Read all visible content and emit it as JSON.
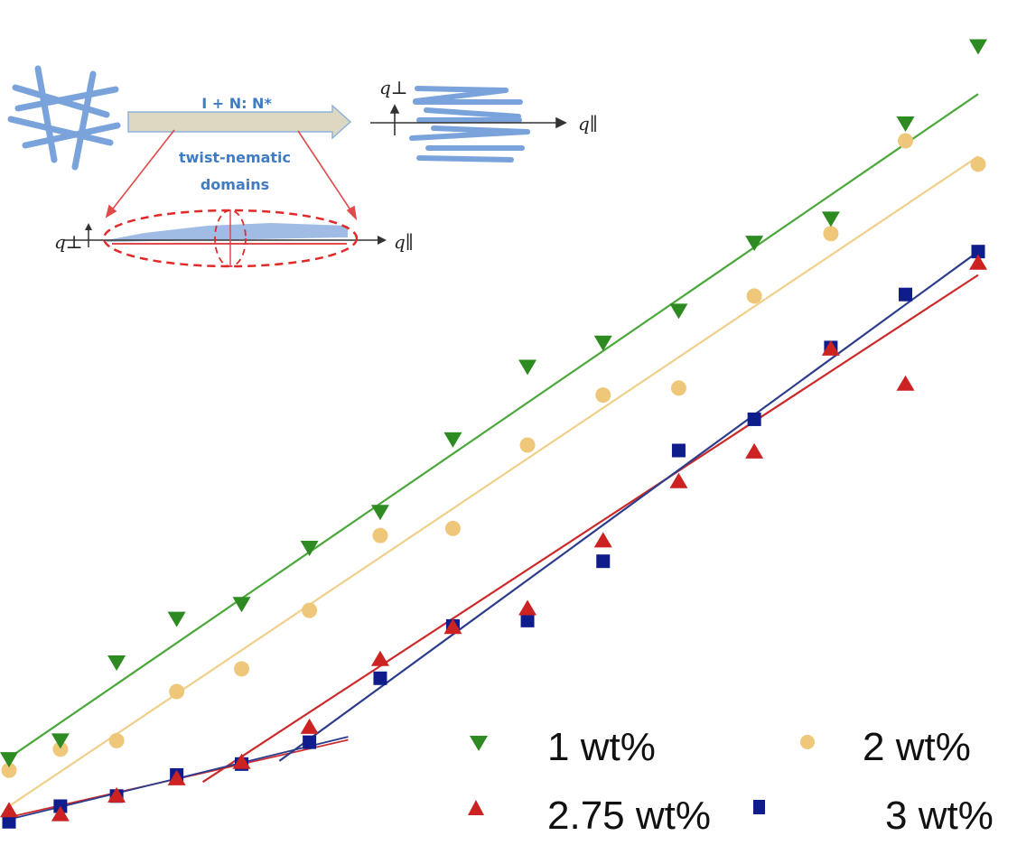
{
  "chart_data": {
    "type": "scatter",
    "title": "",
    "xlabel": "",
    "ylabel": "",
    "xlim": [
      0,
      100
    ],
    "ylim": [
      0,
      100
    ],
    "grid": false,
    "legend_position": "bottom-right",
    "series": [
      {
        "name": "1 wt%",
        "marker": "triangle-down",
        "color": "#2e8b22",
        "line_color": "#4aa83a",
        "x": [
          0,
          5.3,
          11.1,
          17.3,
          24.0,
          31.0,
          38.3,
          45.8,
          53.5,
          61.3,
          69.1,
          76.9,
          84.8,
          92.5,
          100
        ],
        "y": [
          8.2,
          10.6,
          20.6,
          26.2,
          28.1,
          35.3,
          39.9,
          49.2,
          58.5,
          61.6,
          65.7,
          74.4,
          77.5,
          89.7,
          99.6
        ],
        "fit": [
          [
            0,
            8.4
          ],
          [
            100,
            93.5
          ]
        ]
      },
      {
        "name": "2 wt%",
        "marker": "circle",
        "color": "#efc77a",
        "line_color": "#f0cf8a",
        "x": [
          0,
          5.3,
          11.1,
          17.3,
          24.0,
          31.0,
          38.3,
          45.8,
          53.5,
          61.3,
          69.1,
          76.9,
          84.8,
          92.5,
          100
        ],
        "y": [
          6.8,
          9.5,
          10.6,
          16.9,
          19.8,
          27.3,
          36.9,
          37.8,
          48.5,
          54.9,
          55.8,
          67.6,
          75.6,
          87.5,
          84.5
        ],
        "fit": [
          [
            0,
            2.2
          ],
          [
            100,
            85.5
          ]
        ]
      },
      {
        "name": "2.75 wt%",
        "marker": "triangle-up",
        "color": "#cc2222",
        "line_color": "#cc2a2a",
        "x": [
          0,
          5.3,
          11.1,
          17.3,
          24.0,
          31.0,
          38.3,
          45.8,
          53.5,
          61.3,
          69.1,
          76.9,
          84.8,
          92.5,
          100
        ],
        "y": [
          1.7,
          1.2,
          3.6,
          5.8,
          7.9,
          12.4,
          21.1,
          25.2,
          27.6,
          36.3,
          43.9,
          47.7,
          60.9,
          56.4,
          71.9
        ],
        "fit_low": [
          [
            0,
            0.8
          ],
          [
            35,
            10.7
          ]
        ],
        "fit_high": [
          [
            20,
            5.3
          ],
          [
            100,
            70.3
          ]
        ]
      },
      {
        "name": "3 wt%",
        "marker": "square",
        "color": "#0e1c8c",
        "line_color": "#2c3c8c",
        "x": [
          0,
          5.3,
          11.1,
          17.3,
          24.0,
          31.0,
          38.3,
          45.8,
          53.5,
          61.3,
          69.1,
          76.9,
          84.8,
          92.5,
          100
        ],
        "y": [
          0.2,
          2.2,
          3.5,
          6.2,
          7.6,
          10.4,
          18.6,
          25.3,
          26.0,
          33.6,
          47.8,
          51.8,
          61.0,
          67.8,
          73.3
        ],
        "fit_low": [
          [
            0,
            0.5
          ],
          [
            35,
            11.1
          ]
        ],
        "fit_high": [
          [
            27.9,
            8.0
          ],
          [
            100,
            73.3
          ]
        ]
      }
    ]
  },
  "inset": {
    "arrow_label": "I + N: N*",
    "domain_label_line1": "twist-nematic",
    "domain_label_line2": "domains",
    "q_perp": "q⊥",
    "q_par": "q∥"
  },
  "legend": {
    "items": [
      {
        "label": "1 wt%"
      },
      {
        "label": "2 wt%"
      },
      {
        "label": "2.75 wt%"
      },
      {
        "label": "3 wt%"
      }
    ]
  }
}
